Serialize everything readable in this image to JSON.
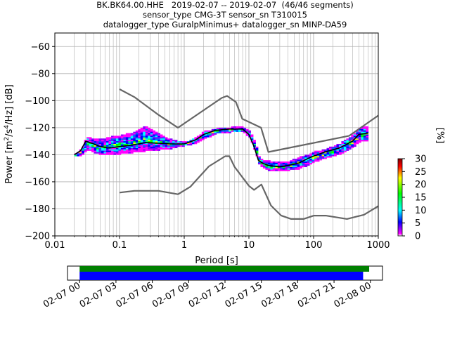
{
  "title": {
    "line1": "BK.BK64.00.HHE   2019-02-07 -- 2019-02-07  (46/46 segments)",
    "line2": "sensor_type CMG-3T sensor_sn T310015",
    "line3": "datalogger_type GuralpMinimus+ datalogger_sn MINP-DA59"
  },
  "colors": {
    "model_curves": "#666666",
    "mode_line": "#000000",
    "grid": "#b0b0b0",
    "coverage_top": "#008000",
    "coverage_bottom": "#0000ff"
  },
  "chart_data": [
    {
      "type": "heatmap",
      "xlabel": "Period [s]",
      "ylabel_parts": {
        "pre": "Power [m",
        "sup1": "2",
        "mid": "/s",
        "sup2": "4",
        "post": "/Hz] [dB]"
      },
      "x_scale": "log",
      "xlim": [
        0.01,
        1000
      ],
      "ylim": [
        -200,
        -50
      ],
      "x_ticks": [
        {
          "value": 0.01,
          "label": "0.01"
        },
        {
          "value": 0.1,
          "label": "0.1"
        },
        {
          "value": 1,
          "label": "1"
        },
        {
          "value": 10,
          "label": "10"
        },
        {
          "value": 100,
          "label": "100"
        },
        {
          "value": 1000,
          "label": "1000"
        }
      ],
      "y_ticks": [
        {
          "value": -60,
          "label": "−60"
        },
        {
          "value": -80,
          "label": "−80"
        },
        {
          "value": -100,
          "label": "−100"
        },
        {
          "value": -120,
          "label": "−120"
        },
        {
          "value": -140,
          "label": "−140"
        },
        {
          "value": -160,
          "label": "−160"
        },
        {
          "value": -180,
          "label": "−180"
        },
        {
          "value": -200,
          "label": "−200"
        }
      ],
      "grid": true,
      "colorbar": {
        "label": "[%]",
        "range": [
          0,
          30
        ],
        "ticks": [
          {
            "value": 0,
            "label": "0"
          },
          {
            "value": 5,
            "label": "5"
          },
          {
            "value": 10,
            "label": "10"
          },
          {
            "value": 15,
            "label": "15"
          },
          {
            "value": 20,
            "label": "20"
          },
          {
            "value": 25,
            "label": "25"
          },
          {
            "value": 30,
            "label": "30"
          }
        ]
      },
      "series": [
        {
          "kind": "new_high_noise_model",
          "points": [
            [
              0.1,
              -91.5
            ],
            [
              0.17,
              -97.4
            ],
            [
              0.4,
              -110.5
            ],
            [
              0.8,
              -120
            ],
            [
              3.8,
              -98
            ],
            [
              4.6,
              -96.5
            ],
            [
              6.3,
              -101
            ],
            [
              7.9,
              -113.5
            ],
            [
              15.4,
              -120
            ],
            [
              20,
              -138
            ],
            [
              354.8,
              -126
            ],
            [
              1000,
              -111
            ]
          ]
        },
        {
          "kind": "new_low_noise_model",
          "points": [
            [
              0.1,
              -168
            ],
            [
              0.17,
              -166.7
            ],
            [
              0.4,
              -166.7
            ],
            [
              0.8,
              -169.2
            ],
            [
              1.24,
              -163.7
            ],
            [
              2.4,
              -148.6
            ],
            [
              4.3,
              -141.1
            ],
            [
              5,
              -141.1
            ],
            [
              6,
              -149
            ],
            [
              10,
              -163
            ],
            [
              12,
              -166
            ],
            [
              15.6,
              -162
            ],
            [
              21.9,
              -177.5
            ],
            [
              31.6,
              -185
            ],
            [
              45,
              -187.5
            ],
            [
              70,
              -187.5
            ],
            [
              101,
              -185
            ],
            [
              154,
              -185
            ],
            [
              328,
              -187.5
            ],
            [
              600,
              -184.4
            ],
            [
              1000,
              -178
            ]
          ]
        },
        {
          "kind": "mode",
          "points": [
            [
              0.02,
              -140
            ],
            [
              0.025,
              -137
            ],
            [
              0.03,
              -130
            ],
            [
              0.04,
              -132
            ],
            [
              0.05,
              -134
            ],
            [
              0.07,
              -135
            ],
            [
              0.1,
              -134
            ],
            [
              0.15,
              -133
            ],
            [
              0.25,
              -131
            ],
            [
              0.4,
              -131.5
            ],
            [
              0.6,
              -132
            ],
            [
              1,
              -132
            ],
            [
              1.5,
              -129
            ],
            [
              2,
              -125
            ],
            [
              3,
              -122
            ],
            [
              5,
              -121
            ],
            [
              8,
              -121
            ],
            [
              10,
              -125
            ],
            [
              12,
              -134
            ],
            [
              14,
              -144
            ],
            [
              16,
              -146
            ],
            [
              20,
              -148
            ],
            [
              30,
              -149
            ],
            [
              40,
              -148
            ],
            [
              60,
              -146
            ],
            [
              80,
              -143
            ],
            [
              100,
              -141
            ],
            [
              150,
              -138
            ],
            [
              250,
              -135
            ],
            [
              400,
              -130
            ],
            [
              500,
              -125
            ],
            [
              700,
              -124
            ]
          ]
        }
      ],
      "density": {
        "x_periods": [
          0.02,
          0.025,
          0.03,
          0.04,
          0.05,
          0.07,
          0.1,
          0.15,
          0.25,
          0.4,
          0.6,
          1,
          1.5,
          2,
          3,
          5,
          8,
          10,
          12,
          14,
          16,
          20,
          30,
          40,
          60,
          80,
          100,
          150,
          250,
          400,
          500,
          700
        ],
        "upper_db": [
          -139,
          -135,
          -126,
          -128,
          -128,
          -126,
          -125,
          -123,
          -118,
          -124,
          -128,
          -130,
          -126,
          -122,
          -120,
          -119,
          -119,
          -122,
          -130,
          -141,
          -144,
          -144,
          -145,
          -144,
          -141,
          -139,
          -137,
          -135,
          -131,
          -124,
          -119,
          -118
        ],
        "lower_db": [
          -141,
          -140,
          -136,
          -138,
          -140,
          -140,
          -139,
          -138,
          -137,
          -136,
          -135,
          -133,
          -131,
          -128,
          -124,
          -123,
          -123,
          -127,
          -137,
          -147,
          -149,
          -152,
          -152,
          -151,
          -150,
          -147,
          -145,
          -142,
          -139,
          -134,
          -130,
          -130
        ]
      }
    },
    {
      "type": "bar",
      "x_ticks": [
        "02-07 00",
        "02-07 03",
        "02-07 06",
        "02-07 09",
        "02-07 12",
        "02-07 15",
        "02-07 18",
        "02-07 21",
        "02-08 00"
      ],
      "x_range_hours": [
        -1,
        25
      ],
      "series": [
        {
          "kind": "data_coverage",
          "start_hours": 0,
          "end_hours": 23.9
        },
        {
          "kind": "psd_coverage",
          "start_hours": 0,
          "end_hours": 23.4
        }
      ]
    }
  ]
}
